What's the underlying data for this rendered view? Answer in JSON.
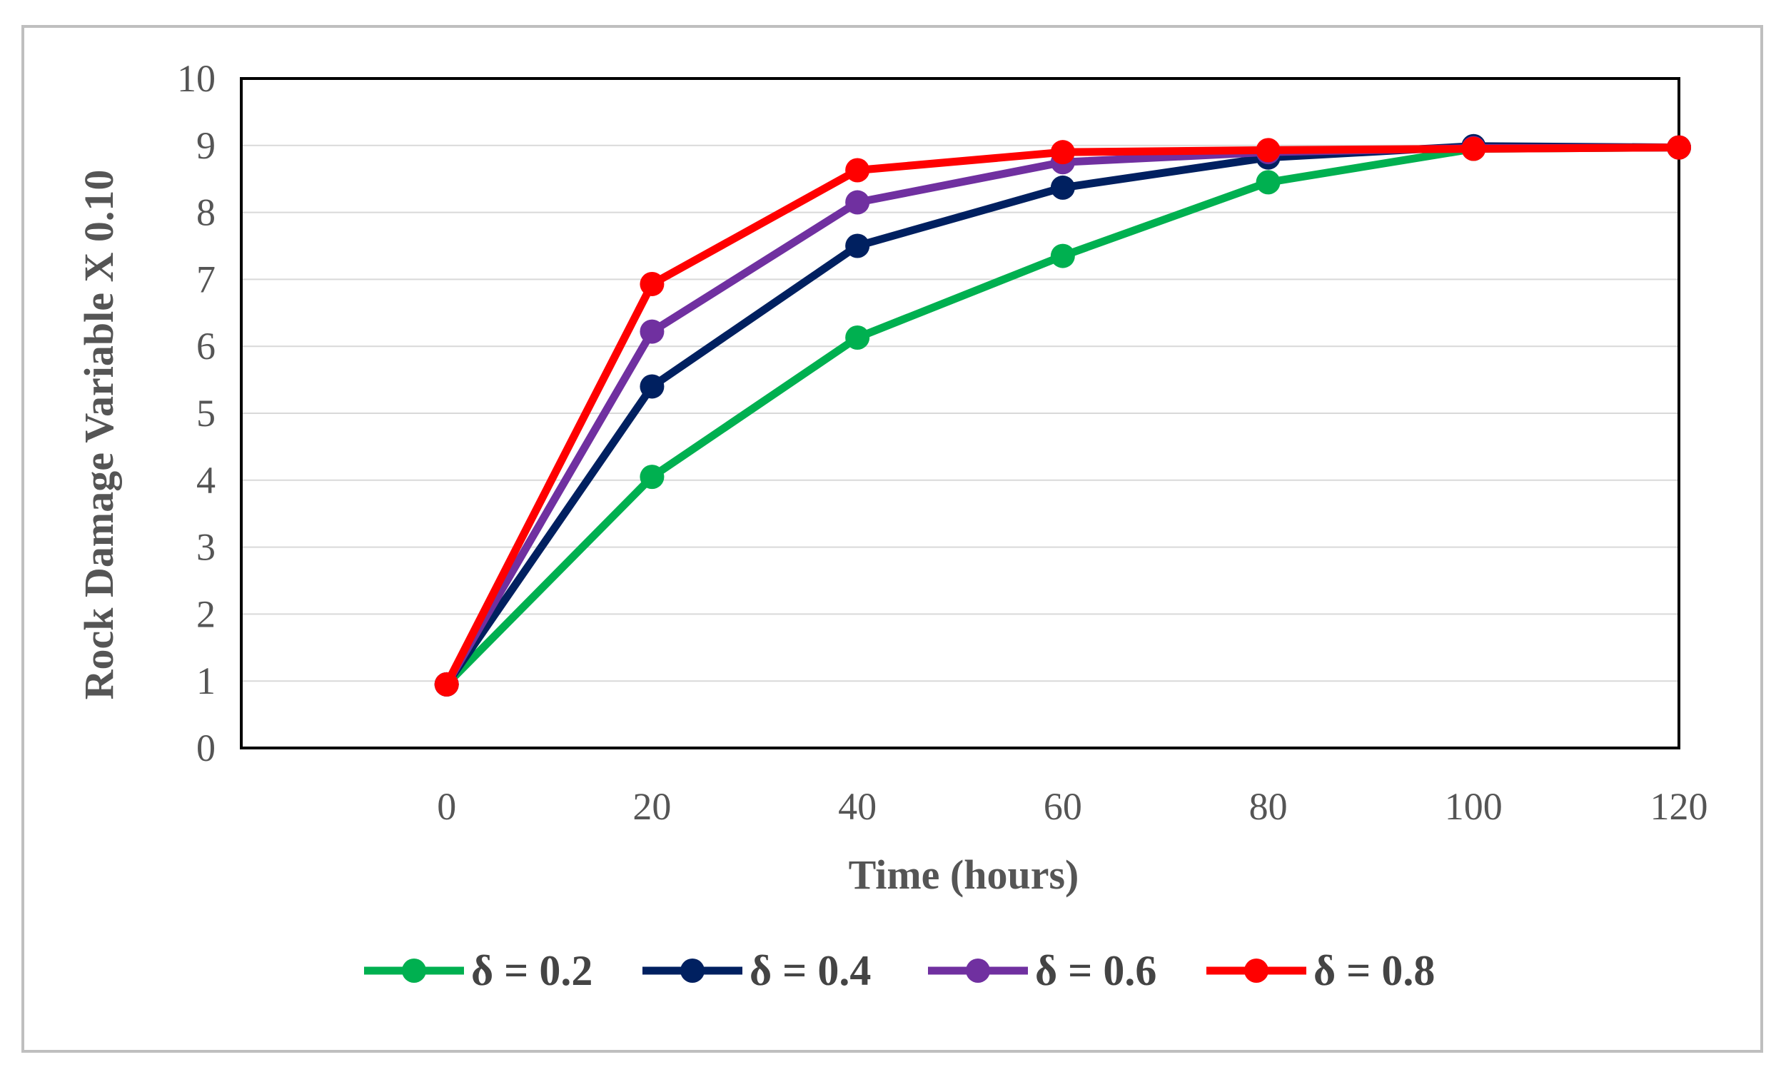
{
  "chart_data": {
    "type": "line",
    "title": "",
    "xlabel": "Time (hours)",
    "ylabel": "Rock Damage Variable X 0.10",
    "x": [
      0,
      20,
      40,
      60,
      80,
      100,
      120
    ],
    "xlim": [
      -20,
      120
    ],
    "ylim": [
      0,
      10
    ],
    "xticks": [
      "0",
      "20",
      "40",
      "60",
      "80",
      "100",
      "120"
    ],
    "yticks": [
      "0",
      "1",
      "2",
      "3",
      "4",
      "5",
      "6",
      "7",
      "8",
      "9",
      "10"
    ],
    "grid": "horizontal",
    "legend_position": "bottom",
    "series": [
      {
        "name": "δ = 0.2",
        "color": "#00b050",
        "values": [
          0.95,
          4.05,
          6.13,
          7.35,
          8.45,
          8.95,
          8.97
        ]
      },
      {
        "name": "δ = 0.4",
        "color": "#002060",
        "values": [
          0.95,
          5.4,
          7.5,
          8.37,
          8.82,
          8.99,
          8.97
        ]
      },
      {
        "name": "δ = 0.6",
        "color": "#7030a0",
        "values": [
          0.95,
          6.22,
          8.15,
          8.75,
          8.9,
          8.96,
          8.97
        ]
      },
      {
        "name": "δ = 0.8",
        "color": "#ff0000",
        "values": [
          0.95,
          6.93,
          8.63,
          8.9,
          8.93,
          8.95,
          8.97
        ]
      }
    ]
  }
}
